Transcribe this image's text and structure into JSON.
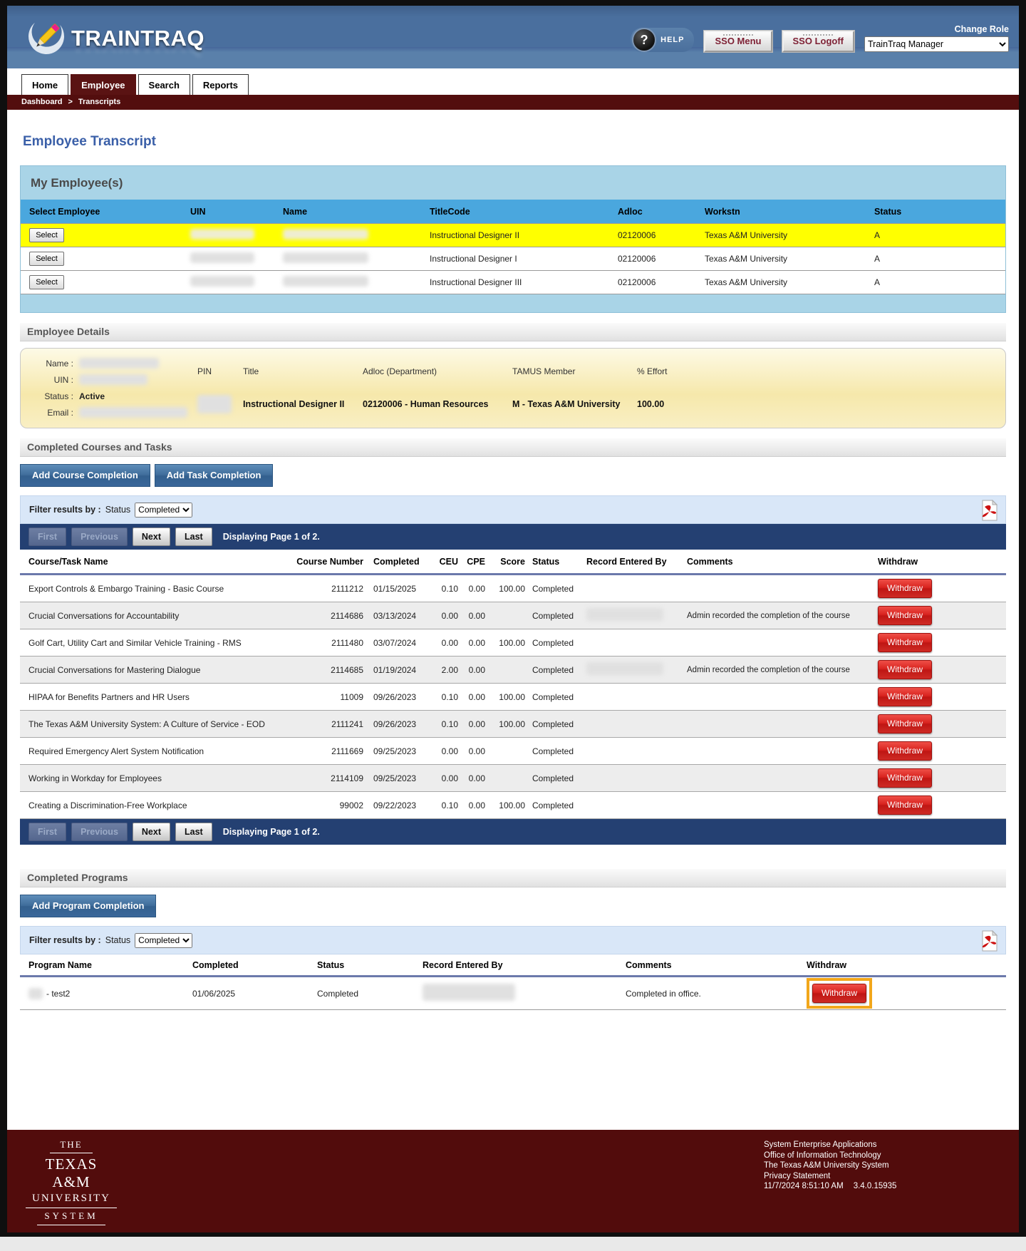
{
  "header": {
    "logo_text": "TRAINTRAQ",
    "help_label": "HELP",
    "help_glyph": "?",
    "sso_menu_label": "SSO Menu",
    "sso_logoff_label": "SSO Logoff",
    "change_role_label": "Change Role",
    "role_selected": "TrainTraq Manager"
  },
  "nav": {
    "tabs": [
      {
        "label": "Home",
        "active": false
      },
      {
        "label": "Employee",
        "active": true
      },
      {
        "label": "Search",
        "active": false
      },
      {
        "label": "Reports",
        "active": false
      }
    ],
    "breadcrumb": [
      "Dashboard",
      "Transcripts"
    ],
    "breadcrumb_separator": ">"
  },
  "page_title": "Employee Transcript",
  "my_employees": {
    "title": "My Employee(s)",
    "columns": [
      "Select Employee",
      "UIN",
      "Name",
      "TitleCode",
      "Adloc",
      "Workstn",
      "Status"
    ],
    "select_label": "Select",
    "rows": [
      {
        "title_code": "Instructional Designer II",
        "adloc": "02120006",
        "workstn": "Texas A&M University",
        "status": "A",
        "highlighted": true
      },
      {
        "title_code": "Instructional Designer I",
        "adloc": "02120006",
        "workstn": "Texas A&M University",
        "status": "A",
        "highlighted": false
      },
      {
        "title_code": "Instructional Designer III",
        "adloc": "02120006",
        "workstn": "Texas A&M University",
        "status": "A",
        "highlighted": false
      }
    ]
  },
  "employee_details": {
    "title": "Employee Details",
    "labels": {
      "name": "Name :",
      "uin": "UIN :",
      "status": "Status :",
      "email": "Email :",
      "pin": "PIN",
      "title": "Title",
      "adloc": "Adloc (Department)",
      "tamus": "TAMUS Member",
      "effort": "% Effort"
    },
    "status_value": "Active",
    "title_value": "Instructional Designer II",
    "adloc_value": "02120006 - Human Resources",
    "tamus_value": "M - Texas A&M University",
    "effort_value": "100.00"
  },
  "courses": {
    "title": "Completed Courses and Tasks",
    "add_course_label": "Add Course Completion",
    "add_task_label": "Add Task Completion",
    "filter_label": "Filter results by :",
    "status_label": "Status",
    "status_value": "Completed",
    "pagination": {
      "first": "First",
      "previous": "Previous",
      "next": "Next",
      "last": "Last",
      "info": "Displaying Page 1 of 2."
    },
    "columns": [
      "Course/Task Name",
      "Course Number",
      "Completed",
      "CEU",
      "CPE",
      "Score",
      "Status",
      "Record Entered By",
      "Comments",
      "Withdraw"
    ],
    "withdraw_label": "Withdraw",
    "rows": [
      {
        "name": "Export Controls & Embargo Training - Basic Course",
        "number": "2111212",
        "completed": "01/15/2025",
        "ceu": "0.10",
        "cpe": "0.00",
        "score": "100.00",
        "status": "Completed",
        "entered_by_redacted": false,
        "comments": ""
      },
      {
        "name": "Crucial Conversations for Accountability",
        "number": "2114686",
        "completed": "03/13/2024",
        "ceu": "0.00",
        "cpe": "0.00",
        "score": "",
        "status": "Completed",
        "entered_by_redacted": true,
        "comments": "Admin recorded the completion of the course"
      },
      {
        "name": "Golf Cart, Utility Cart and Similar Vehicle Training - RMS",
        "number": "2111480",
        "completed": "03/07/2024",
        "ceu": "0.00",
        "cpe": "0.00",
        "score": "100.00",
        "status": "Completed",
        "entered_by_redacted": false,
        "comments": ""
      },
      {
        "name": "Crucial Conversations for Mastering Dialogue",
        "number": "2114685",
        "completed": "01/19/2024",
        "ceu": "2.00",
        "cpe": "0.00",
        "score": "",
        "status": "Completed",
        "entered_by_redacted": true,
        "comments": "Admin recorded the completion of the course"
      },
      {
        "name": "HIPAA for Benefits Partners and HR Users",
        "number": "11009",
        "completed": "09/26/2023",
        "ceu": "0.10",
        "cpe": "0.00",
        "score": "100.00",
        "status": "Completed",
        "entered_by_redacted": false,
        "comments": ""
      },
      {
        "name": "The Texas A&M University System: A Culture of Service - EOD",
        "number": "2111241",
        "completed": "09/26/2023",
        "ceu": "0.10",
        "cpe": "0.00",
        "score": "100.00",
        "status": "Completed",
        "entered_by_redacted": false,
        "comments": ""
      },
      {
        "name": "Required Emergency Alert System Notification",
        "number": "2111669",
        "completed": "09/25/2023",
        "ceu": "0.00",
        "cpe": "0.00",
        "score": "",
        "status": "Completed",
        "entered_by_redacted": false,
        "comments": ""
      },
      {
        "name": "Working in Workday for Employees",
        "number": "2114109",
        "completed": "09/25/2023",
        "ceu": "0.00",
        "cpe": "0.00",
        "score": "",
        "status": "Completed",
        "entered_by_redacted": false,
        "comments": ""
      },
      {
        "name": "Creating a Discrimination-Free Workplace",
        "number": "99002",
        "completed": "09/22/2023",
        "ceu": "0.10",
        "cpe": "0.00",
        "score": "100.00",
        "status": "Completed",
        "entered_by_redacted": false,
        "comments": ""
      }
    ]
  },
  "programs": {
    "title": "Completed Programs",
    "add_label": "Add Program Completion",
    "filter_label": "Filter results by :",
    "status_label": "Status",
    "status_value": "Completed",
    "columns": [
      "Program Name",
      "Completed",
      "Status",
      "Record Entered By",
      "Comments",
      "Withdraw"
    ],
    "withdraw_label": "Withdraw",
    "rows": [
      {
        "name_suffix": "- test2",
        "completed": "01/06/2025",
        "status": "Completed",
        "entered_by_redacted": true,
        "comments": "Completed in office.",
        "withdraw_highlighted": true
      }
    ]
  },
  "footer": {
    "wordmark": {
      "line1": "THE",
      "line2": "TEXAS A&M",
      "line3": "UNIVERSITY",
      "line4": "SYSTEM"
    },
    "lines": [
      "System Enterprise Applications",
      "Office of Information Technology",
      "The Texas A&M University System",
      "Privacy Statement"
    ],
    "timestamp": "11/7/2024 8:51:10 AM",
    "version": "3.4.0.15935"
  },
  "colors": {
    "banner_blue": "#4a6f9e",
    "maroon": "#530e0e",
    "footer_maroon": "#520c0c",
    "table_header_blue": "#4aa7de",
    "panel_blue": "#a9d4e7",
    "highlight_yellow": "#ffff00",
    "button_blue": "#3d6b99",
    "button_red": "#ce2b25",
    "pager_navy": "#244072",
    "highlight_orange": "#f2a71b",
    "title_blue": "#3a5fa8"
  }
}
